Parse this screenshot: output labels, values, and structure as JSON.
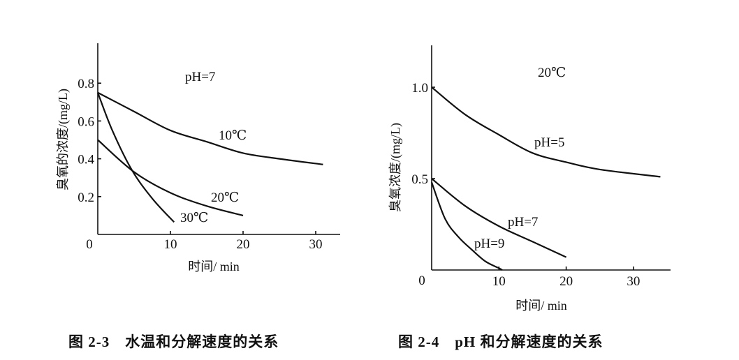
{
  "chart_data": [
    {
      "type": "line",
      "caption": "图 2-3　水温和分解速度的关系",
      "xlabel": "时间/ min",
      "ylabel": "臭氧的浓度/(mg/L)",
      "xlim": [
        0,
        33
      ],
      "ylim": [
        0,
        1.0
      ],
      "x_ticks": [
        "0",
        "10",
        "20",
        "30"
      ],
      "y_ticks": [
        "0.2",
        "0.4",
        "0.6",
        "0.8"
      ],
      "grid": false,
      "annotations": [
        "pH=7"
      ],
      "series": [
        {
          "name": "10℃",
          "x": [
            0,
            5,
            10,
            15,
            20,
            25,
            31
          ],
          "y": [
            0.75,
            0.65,
            0.55,
            0.49,
            0.43,
            0.4,
            0.37
          ]
        },
        {
          "name": "20℃",
          "x": [
            0,
            5,
            10,
            15,
            20
          ],
          "y": [
            0.5,
            0.33,
            0.22,
            0.15,
            0.1
          ]
        },
        {
          "name": "30℃",
          "x": [
            0,
            2,
            4.7,
            7.5,
            10.5
          ],
          "y": [
            0.75,
            0.55,
            0.34,
            0.19,
            0.065
          ]
        }
      ]
    },
    {
      "type": "line",
      "caption": "图 2-4　pH 和分解速度的关系",
      "xlabel": "时间/ min",
      "ylabel": "臭氧浓度/(mg/L)",
      "xlim": [
        0,
        36
      ],
      "ylim": [
        0,
        1.23
      ],
      "x_ticks": [
        "0",
        "10",
        "20",
        "30"
      ],
      "y_ticks": [
        "0.5",
        "1.0"
      ],
      "grid": false,
      "annotations": [
        "20℃"
      ],
      "series": [
        {
          "name": "pH=5",
          "x": [
            0,
            5,
            10,
            15,
            20,
            25,
            34
          ],
          "y": [
            1.0,
            0.85,
            0.74,
            0.64,
            0.59,
            0.55,
            0.51
          ]
        },
        {
          "name": "pH=7",
          "x": [
            0,
            5,
            10,
            15,
            20
          ],
          "y": [
            0.5,
            0.35,
            0.24,
            0.155,
            0.07
          ]
        },
        {
          "name": "pH=9",
          "x": [
            0,
            2,
            4,
            6,
            8,
            10,
            10.5
          ],
          "y": [
            0.48,
            0.28,
            0.18,
            0.11,
            0.047,
            0.01,
            0
          ]
        }
      ]
    }
  ]
}
